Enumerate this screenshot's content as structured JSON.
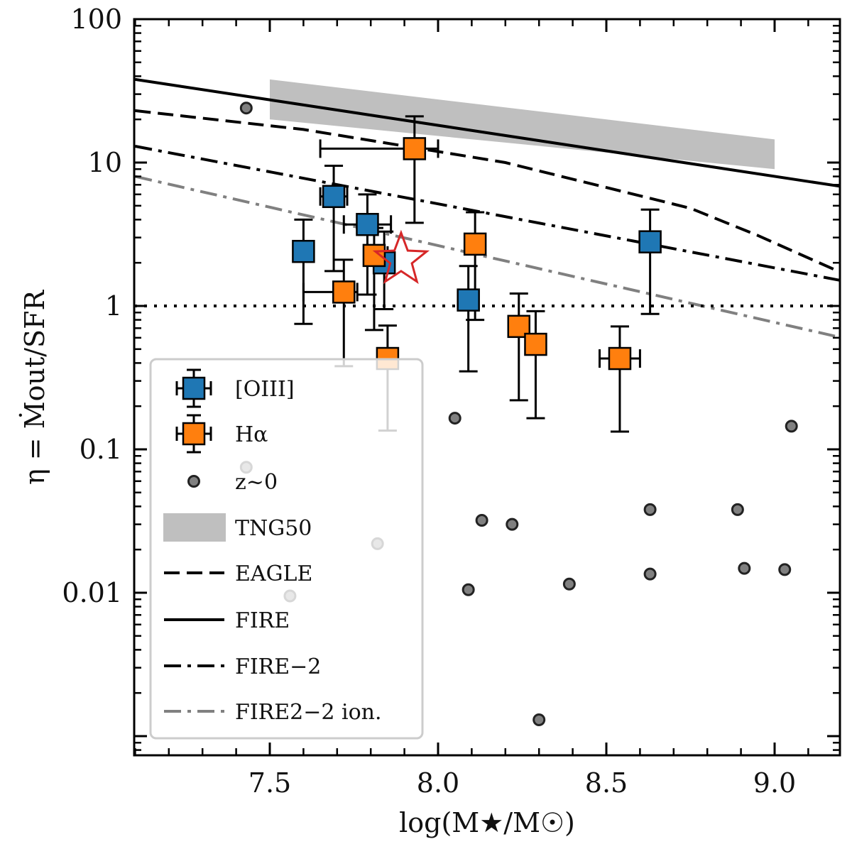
{
  "chart_data": {
    "type": "scatter",
    "title": "",
    "xlabel": "log(M★/M☉)",
    "ylabel": "η = Ṁout/SFR",
    "xlim": [
      7.1,
      9.2
    ],
    "ylim": [
      0.0007,
      100
    ],
    "yscale": "log",
    "xticks": [
      "7.5",
      "8.0",
      "8.5",
      "9.0"
    ],
    "yticks": [
      "100",
      "10",
      "1",
      "0.1",
      "0.01"
    ],
    "legend": {
      "location": "lower-left",
      "entries": [
        "[OIII]",
        "Hα",
        "z~0",
        "TNG50",
        "EAGLE",
        "FIRE",
        "FIRE−2",
        "FIRE2−2 ion."
      ]
    },
    "colors": {
      "oiii": "#1f77b4",
      "halpha": "#ff7f0e",
      "z0": "#808080",
      "tng50": "#bfbfbf",
      "star": "#d62728",
      "ion_line": "#808080"
    },
    "reference_line": {
      "y": 1,
      "style": "dotted"
    },
    "series": [
      {
        "name": "[OIII]",
        "marker": "square",
        "points": [
          {
            "x": 7.6,
            "y": 2.4,
            "ylo": 0.75,
            "yhi": 4.0,
            "xlo": 7.6,
            "xhi": 7.6
          },
          {
            "x": 7.69,
            "y": 5.8,
            "ylo": 1.75,
            "yhi": 9.5,
            "xlo": 7.65,
            "xhi": 7.73
          },
          {
            "x": 7.79,
            "y": 3.7,
            "ylo": 1.2,
            "yhi": 6.0,
            "xlo": 7.72,
            "xhi": 7.86
          },
          {
            "x": 7.84,
            "y": 2.0,
            "ylo": 0.95,
            "yhi": 3.3,
            "xlo": 7.84,
            "xhi": 7.84
          },
          {
            "x": 8.09,
            "y": 1.1,
            "ylo": 0.35,
            "yhi": 1.9,
            "xlo": 8.09,
            "xhi": 8.09
          },
          {
            "x": 8.63,
            "y": 2.8,
            "ylo": 0.88,
            "yhi": 4.7,
            "xlo": 8.63,
            "xhi": 8.63
          }
        ]
      },
      {
        "name": "Hα",
        "marker": "square",
        "points": [
          {
            "x": 7.72,
            "y": 1.25,
            "ylo": 0.38,
            "yhi": 2.1,
            "xlo": 7.6,
            "xhi": 7.76
          },
          {
            "x": 7.81,
            "y": 2.25,
            "ylo": 0.68,
            "yhi": 3.5,
            "xlo": 7.78,
            "xhi": 7.85
          },
          {
            "x": 7.85,
            "y": 0.43,
            "ylo": 0.135,
            "yhi": 0.73,
            "xlo": 7.82,
            "xhi": 7.88
          },
          {
            "x": 7.93,
            "y": 12.5,
            "ylo": 3.8,
            "yhi": 21.0,
            "xlo": 7.65,
            "xhi": 8.0
          },
          {
            "x": 8.11,
            "y": 2.7,
            "ylo": 0.8,
            "yhi": 4.5,
            "xlo": 8.11,
            "xhi": 8.11
          },
          {
            "x": 8.24,
            "y": 0.72,
            "ylo": 0.22,
            "yhi": 1.22,
            "xlo": 8.24,
            "xhi": 8.24
          },
          {
            "x": 8.29,
            "y": 0.54,
            "ylo": 0.165,
            "yhi": 0.92,
            "xlo": 8.29,
            "xhi": 8.29
          },
          {
            "x": 8.54,
            "y": 0.43,
            "ylo": 0.133,
            "yhi": 0.72,
            "xlo": 8.48,
            "xhi": 8.6
          }
        ]
      },
      {
        "name": "z~0",
        "marker": "circle",
        "points": [
          {
            "x": 7.43,
            "y": 24
          },
          {
            "x": 7.43,
            "y": 0.075
          },
          {
            "x": 7.56,
            "y": 0.0095
          },
          {
            "x": 7.82,
            "y": 0.022
          },
          {
            "x": 8.05,
            "y": 0.165
          },
          {
            "x": 8.09,
            "y": 0.0105
          },
          {
            "x": 8.13,
            "y": 0.032
          },
          {
            "x": 8.22,
            "y": 0.03
          },
          {
            "x": 8.3,
            "y": 0.0013
          },
          {
            "x": 8.39,
            "y": 0.0115
          },
          {
            "x": 8.63,
            "y": 0.038
          },
          {
            "x": 8.63,
            "y": 0.0135
          },
          {
            "x": 8.89,
            "y": 0.038
          },
          {
            "x": 8.91,
            "y": 0.0148
          },
          {
            "x": 9.03,
            "y": 0.0145
          },
          {
            "x": 9.05,
            "y": 0.145
          }
        ]
      },
      {
        "name": "highlight",
        "marker": "star",
        "points": [
          {
            "x": 7.89,
            "y": 2.1
          }
        ]
      }
    ],
    "lines": [
      {
        "name": "FIRE",
        "style": "solid",
        "x": [
          7.1,
          9.2
        ],
        "y": [
          38,
          6.8
        ]
      },
      {
        "name": "EAGLE",
        "style": "dashed",
        "x": [
          7.1,
          7.6,
          8.2,
          8.75,
          8.95,
          9.2
        ],
        "y": [
          23,
          17,
          10,
          4.8,
          3.1,
          1.7
        ]
      },
      {
        "name": "FIRE−2",
        "style": "dashdot",
        "x": [
          7.1,
          9.2
        ],
        "y": [
          13,
          1.5
        ]
      },
      {
        "name": "FIRE2−2 ion.",
        "style": "dashdot-gray",
        "x": [
          7.1,
          9.2
        ],
        "y": [
          8,
          0.6
        ]
      }
    ],
    "bands": [
      {
        "name": "TNG50",
        "x": [
          7.5,
          9.0
        ],
        "ylow": [
          20,
          9.0
        ],
        "yhigh": [
          38,
          14.5
        ]
      }
    ]
  }
}
